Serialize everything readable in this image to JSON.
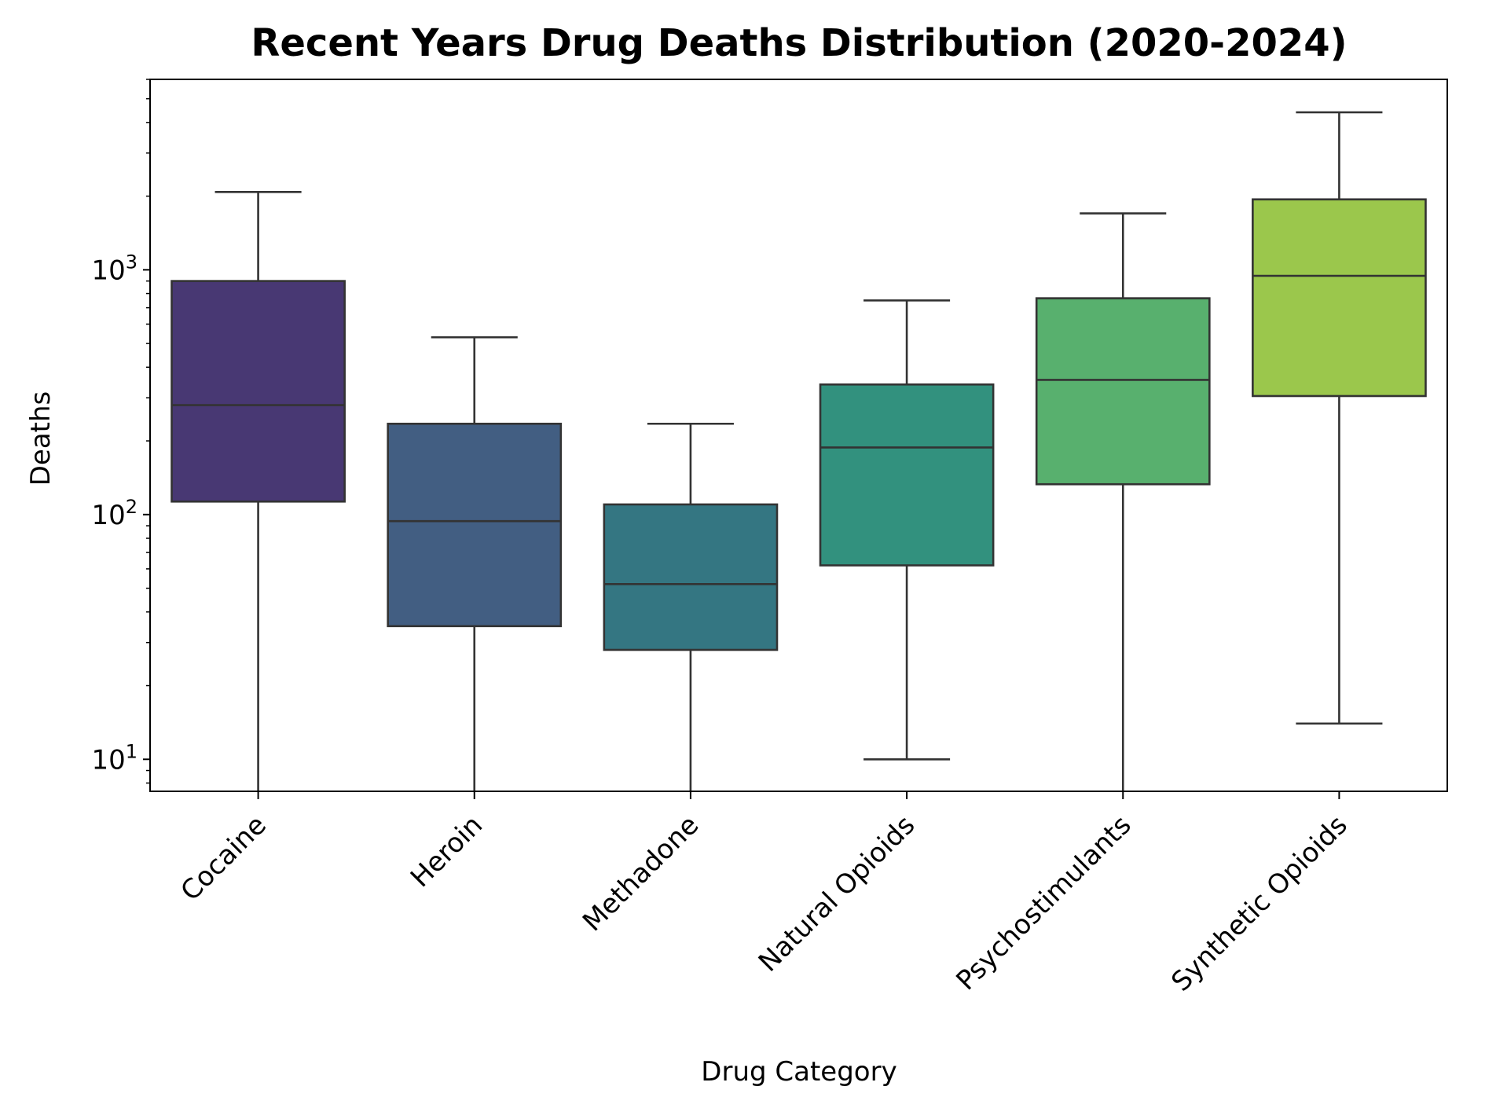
{
  "chart_data": {
    "type": "box",
    "title": "Recent Years Drug Deaths Distribution (2020-2024)",
    "xlabel": "Drug Category",
    "ylabel": "Deaths",
    "yscale": "log",
    "ylim": [
      7.4,
      6000
    ],
    "y_ticks": [
      {
        "value": 10,
        "base": "10",
        "exp": "1"
      },
      {
        "value": 100,
        "base": "10",
        "exp": "2"
      },
      {
        "value": 1000,
        "base": "10",
        "exp": "3"
      }
    ],
    "categories": [
      "Cocaine",
      "Heroin",
      "Methadone",
      "Natural Opioids",
      "Psychostimulants",
      "Synthetic Opioids"
    ],
    "boxes": [
      {
        "category": "Cocaine",
        "whisker_low": 7.4,
        "q1": 113,
        "median": 280,
        "q3": 900,
        "whisker_high": 2080,
        "color": "#483873"
      },
      {
        "category": "Heroin",
        "whisker_low": 7.4,
        "q1": 35,
        "median": 94,
        "q3": 235,
        "whisker_high": 530,
        "color": "#425E82"
      },
      {
        "category": "Methadone",
        "whisker_low": 7.4,
        "q1": 28,
        "median": 52,
        "q3": 110,
        "whisker_high": 235,
        "color": "#347682"
      },
      {
        "category": "Natural Opioids",
        "whisker_low": 10,
        "q1": 62,
        "median": 188,
        "q3": 340,
        "whisker_high": 750,
        "color": "#32917E"
      },
      {
        "category": "Psychostimulants",
        "whisker_low": 7.4,
        "q1": 133,
        "median": 355,
        "q3": 765,
        "whisker_high": 1700,
        "color": "#58B06E"
      },
      {
        "category": "Synthetic Opioids",
        "whisker_low": 14,
        "q1": 305,
        "median": 945,
        "q3": 1940,
        "whisker_high": 4400,
        "color": "#9BC74C"
      }
    ],
    "grid": false,
    "legend": "none"
  }
}
